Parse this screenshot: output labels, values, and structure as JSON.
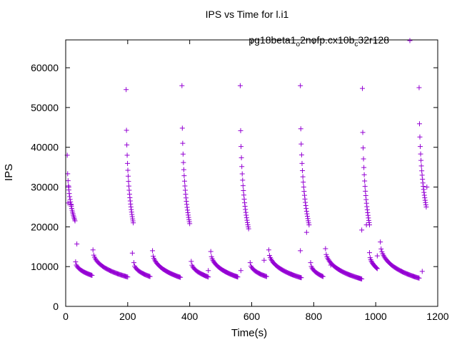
{
  "chart_data": {
    "type": "scatter",
    "title": "IPS vs Time for l.i1",
    "xlabel": "Time(s)",
    "ylabel": "IPS",
    "xlim": [
      0,
      1200
    ],
    "ylim": [
      0,
      67000
    ],
    "xticks": [
      0,
      200,
      400,
      600,
      800,
      1000,
      1200
    ],
    "yticks": [
      0,
      10000,
      20000,
      30000,
      40000,
      50000,
      60000
    ],
    "grid": false,
    "legend_position": "top-right",
    "marker": "plus",
    "color": "#9400d3",
    "series": [
      {
        "name": "pg18beta1_o2nofp.cx10b_c32r128",
        "segments": [
          {
            "t0": 5,
            "t1": 30,
            "v0": 38000,
            "v1": 21500,
            "n": 20
          },
          {
            "t0": 32,
            "t1": 85,
            "v0": 11200,
            "v1": 7800,
            "n": 24
          },
          {
            "t0": 88,
            "t1": 200,
            "v0": 14200,
            "v1": 7400,
            "n": 45
          },
          {
            "t0": 195,
            "t1": 218,
            "v0": 54500,
            "v1": 21000,
            "n": 22
          },
          {
            "t0": 220,
            "t1": 272,
            "v0": 11000,
            "v1": 7500,
            "n": 22
          },
          {
            "t0": 280,
            "t1": 370,
            "v0": 14000,
            "v1": 7300,
            "n": 40
          },
          {
            "t0": 375,
            "t1": 400,
            "v0": 55500,
            "v1": 20800,
            "n": 22
          },
          {
            "t0": 405,
            "t1": 460,
            "v0": 11300,
            "v1": 7400,
            "n": 24
          },
          {
            "t0": 468,
            "t1": 555,
            "v0": 13800,
            "v1": 7400,
            "n": 40
          },
          {
            "t0": 563,
            "t1": 590,
            "v0": 55500,
            "v1": 19500,
            "n": 22
          },
          {
            "t0": 595,
            "t1": 648,
            "v0": 11000,
            "v1": 7500,
            "n": 22
          },
          {
            "t0": 655,
            "t1": 760,
            "v0": 14200,
            "v1": 7200,
            "n": 45
          },
          {
            "t0": 757,
            "t1": 785,
            "v0": 55500,
            "v1": 20500,
            "n": 22
          },
          {
            "t0": 790,
            "t1": 830,
            "v0": 11000,
            "v1": 7500,
            "n": 18
          },
          {
            "t0": 838,
            "t1": 955,
            "v0": 14500,
            "v1": 6900,
            "n": 50
          },
          {
            "t0": 957,
            "t1": 980,
            "v0": 54800,
            "v1": 20500,
            "n": 20
          },
          {
            "t0": 980,
            "t1": 1005,
            "v0": 13500,
            "v1": 9500,
            "n": 14
          },
          {
            "t0": 1015,
            "t1": 1140,
            "v0": 16200,
            "v1": 7100,
            "n": 52
          },
          {
            "t0": 1140,
            "t1": 1163,
            "v0": 55000,
            "v1": 25000,
            "n": 20
          }
        ],
        "extra_points": [
          [
            10,
            30000
          ],
          [
            7,
            26000
          ],
          [
            18,
            25500
          ],
          [
            36,
            15700
          ],
          [
            215,
            13400
          ],
          [
            460,
            9000
          ],
          [
            565,
            9000
          ],
          [
            640,
            11600
          ],
          [
            757,
            14000
          ],
          [
            777,
            18600
          ],
          [
            855,
            10400
          ],
          [
            955,
            19200
          ],
          [
            970,
            20500
          ],
          [
            1005,
            12700
          ],
          [
            1150,
            8800
          ],
          [
            1165,
            30000
          ]
        ]
      }
    ]
  }
}
